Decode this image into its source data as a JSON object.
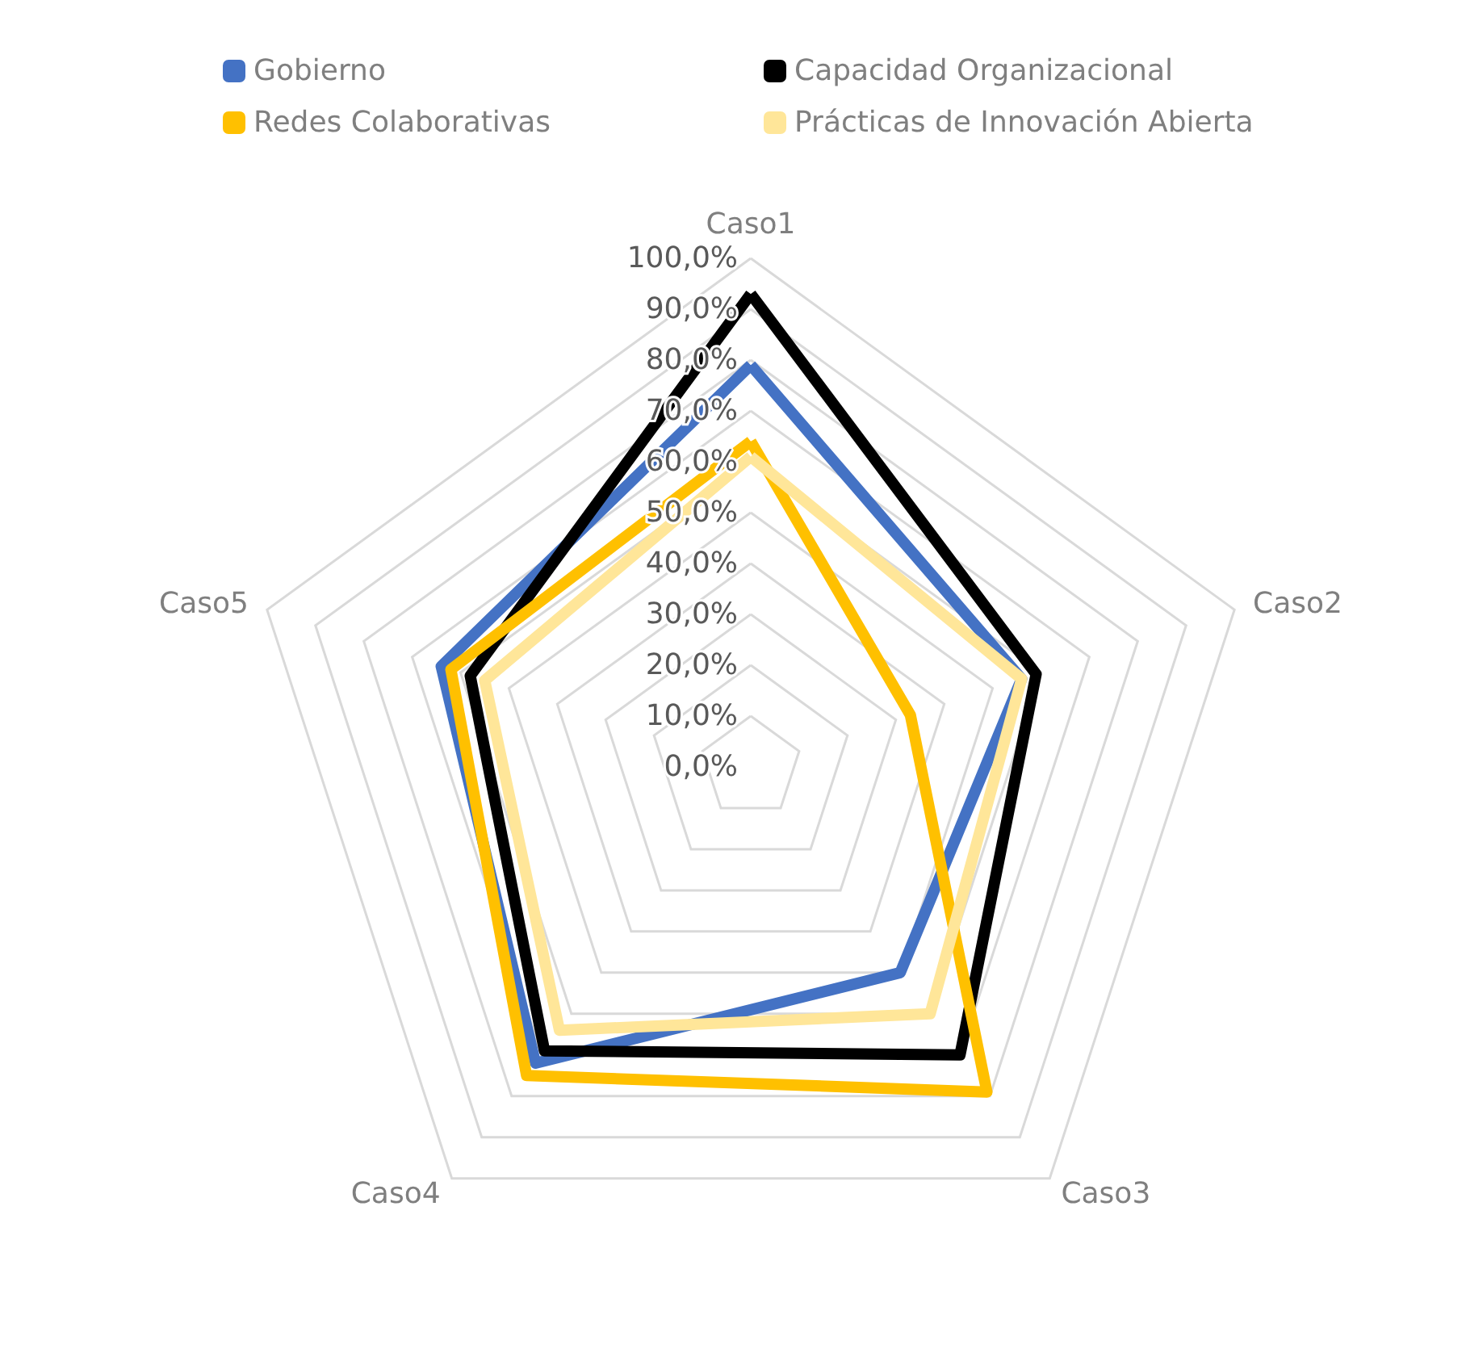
{
  "chart_data": {
    "type": "radar",
    "categories": [
      "Caso1",
      "Caso2",
      "Caso3",
      "Caso4",
      "Caso5"
    ],
    "series": [
      {
        "name": "Gobierno",
        "color": "#4472c4",
        "values": [
          79,
          56,
          50,
          72,
          64
        ]
      },
      {
        "name": "Capacidad Organizacional",
        "color": "#000000",
        "values": [
          93,
          59,
          70,
          69,
          58
        ]
      },
      {
        "name": "Redes Colaborativas",
        "color": "#ffc000",
        "values": [
          64,
          33,
          79,
          75,
          62
        ]
      },
      {
        "name": "Prácticas de Innovación Abierta",
        "color": "#ffe699",
        "values": [
          61,
          56,
          60,
          64,
          55
        ]
      }
    ],
    "ylim": [
      0,
      100
    ],
    "yticks": [
      {
        "value": 0,
        "label": "0,0%"
      },
      {
        "value": 10,
        "label": "10,0%"
      },
      {
        "value": 20,
        "label": "20,0%"
      },
      {
        "value": 30,
        "label": "30,0%"
      },
      {
        "value": 40,
        "label": "40,0%"
      },
      {
        "value": 50,
        "label": "50,0%"
      },
      {
        "value": 60,
        "label": "60,0%"
      },
      {
        "value": 70,
        "label": "70,0%"
      },
      {
        "value": 80,
        "label": "80,0%"
      },
      {
        "value": 90,
        "label": "90,0%"
      },
      {
        "value": 100,
        "label": "100,0%"
      }
    ],
    "legend": "top",
    "grid": true,
    "marker": "none",
    "line_style": "solid"
  }
}
